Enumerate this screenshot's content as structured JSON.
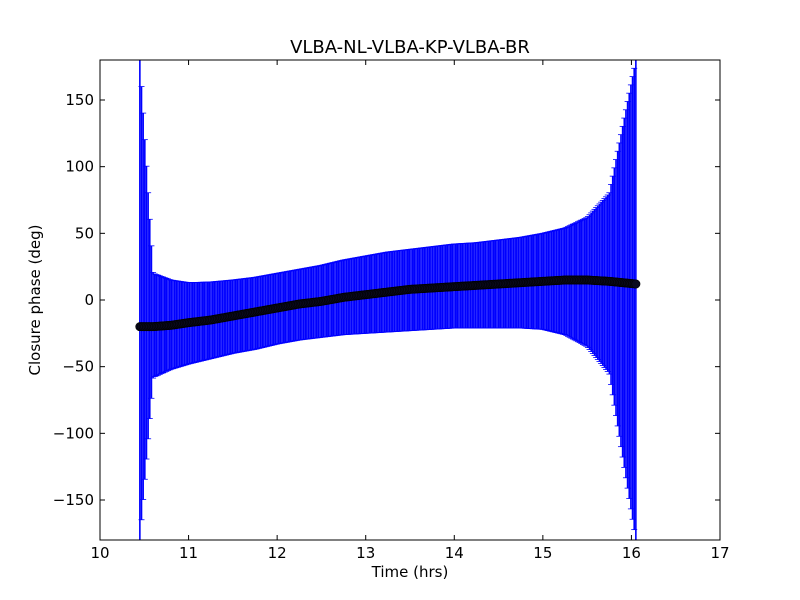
{
  "chart_data": {
    "type": "scatter",
    "title": "VLBA-NL-VLBA-KP-VLBA-BR",
    "xlabel": "Time (hrs)",
    "ylabel": "Closure phase (deg)",
    "xlim": [
      10,
      17
    ],
    "ylim": [
      -180,
      180
    ],
    "xticks": [
      10,
      11,
      12,
      13,
      14,
      15,
      16,
      17
    ],
    "yticks": [
      -150,
      -100,
      -50,
      0,
      50,
      100,
      150
    ],
    "xtick_labels": [
      "10",
      "11",
      "12",
      "13",
      "14",
      "15",
      "16",
      "17"
    ],
    "ytick_labels": [
      "−150",
      "−100",
      "−50",
      "0",
      "50",
      "100",
      "150"
    ],
    "grid": false,
    "time_range": [
      10.45,
      16.05
    ],
    "series": [
      {
        "marker": "circle",
        "color": "#000000",
        "error_color": "#0000ff",
        "x": [
          10.45,
          10.6,
          10.8,
          11.0,
          11.25,
          11.5,
          11.75,
          12.0,
          12.25,
          12.5,
          12.75,
          13.0,
          13.25,
          13.5,
          13.75,
          14.0,
          14.25,
          14.5,
          14.75,
          15.0,
          15.25,
          15.5,
          15.75,
          16.05
        ],
        "y": [
          -20,
          -20,
          -19,
          -17,
          -15,
          -12,
          -9,
          -6,
          -3,
          -1,
          2,
          4,
          6,
          8,
          9,
          10,
          11,
          12,
          13,
          14,
          15,
          15,
          14,
          12
        ],
        "err_upper": [
          180,
          20,
          15,
          13,
          13.5,
          15,
          17,
          20,
          23,
          26,
          30,
          33,
          36,
          38,
          40,
          42,
          43,
          45,
          47,
          50,
          54,
          62,
          80,
          180
        ],
        "err_lower": [
          -180,
          -58,
          -52,
          -48,
          -44,
          -40,
          -37,
          -33,
          -30,
          -28,
          -26,
          -25,
          -24,
          -23,
          -22,
          -21,
          -21,
          -21,
          -21,
          -22,
          -26,
          -35,
          -55,
          -180
        ]
      }
    ]
  }
}
